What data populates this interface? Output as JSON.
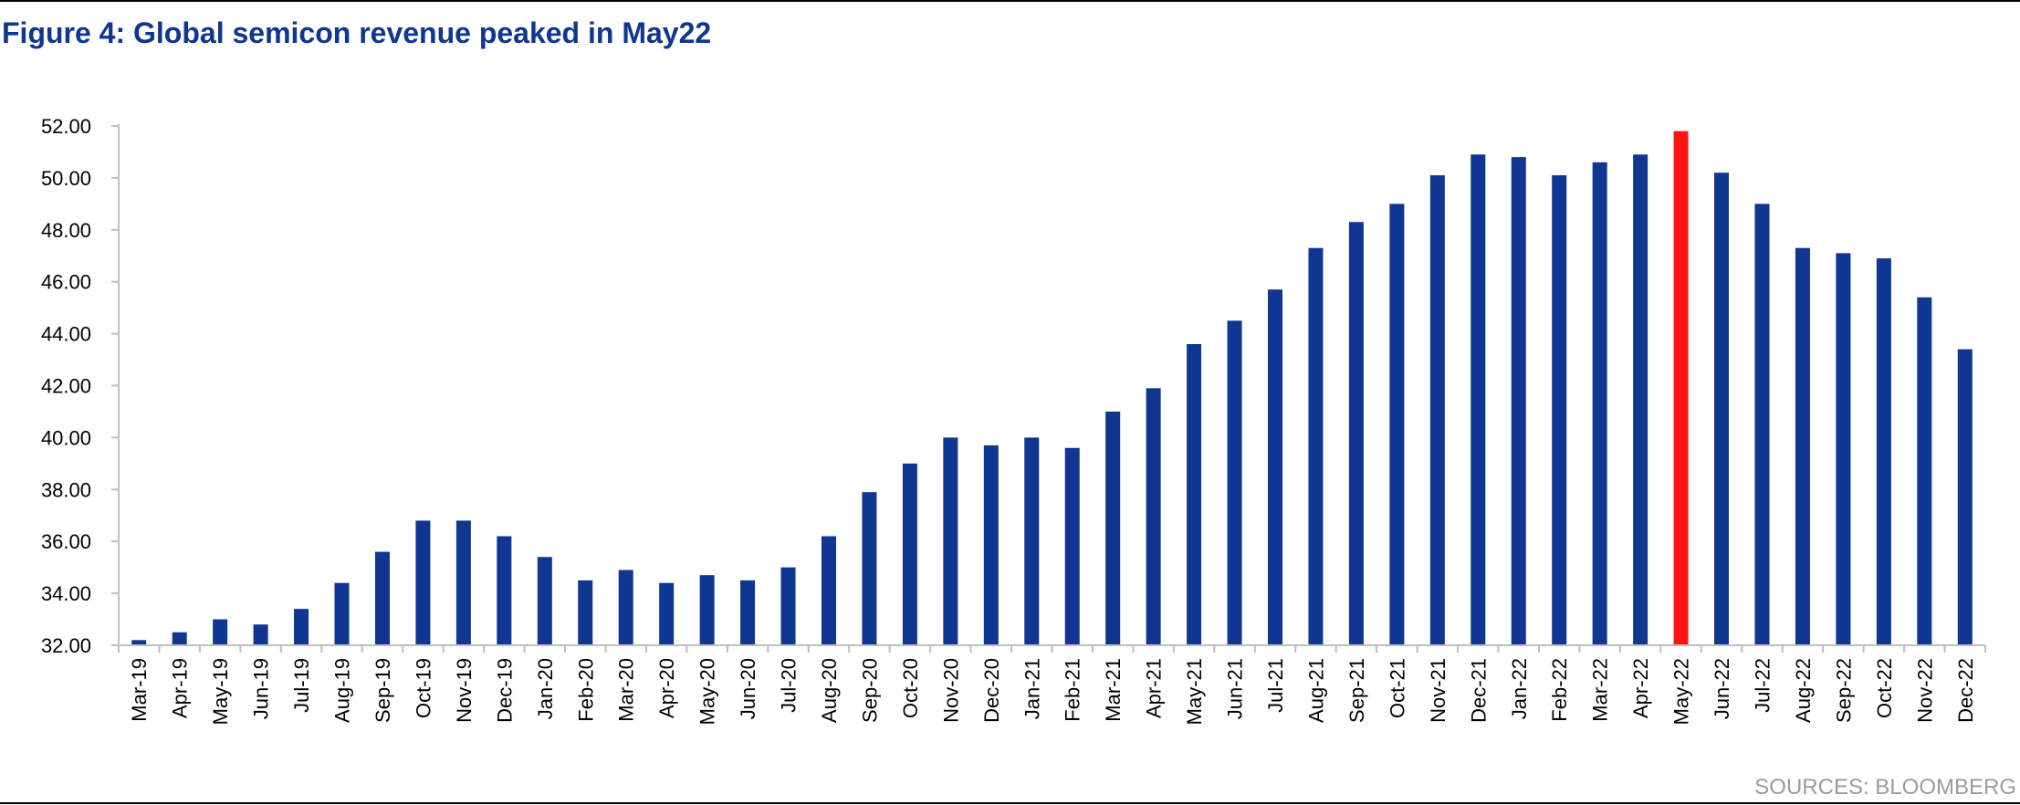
{
  "title": "Figure 4: Global semicon revenue peaked in May22",
  "source": "SOURCES: BLOOMBERG",
  "colors": {
    "bar": "#0f3690",
    "highlight": "#ff1414",
    "title": "#0f3690",
    "axis": "#bfbfbf"
  },
  "chart_data": {
    "type": "bar",
    "title": "Figure 4: Global semicon revenue peaked in May22",
    "xlabel": "",
    "ylabel": "",
    "ylim": [
      32,
      52
    ],
    "yticks": [
      "32.00",
      "34.00",
      "36.00",
      "38.00",
      "40.00",
      "42.00",
      "44.00",
      "46.00",
      "48.00",
      "50.00",
      "52.00"
    ],
    "grid": false,
    "highlight_category": "May-22",
    "categories": [
      "Mar-19",
      "Apr-19",
      "May-19",
      "Jun-19",
      "Jul-19",
      "Aug-19",
      "Sep-19",
      "Oct-19",
      "Nov-19",
      "Dec-19",
      "Jan-20",
      "Feb-20",
      "Mar-20",
      "Apr-20",
      "May-20",
      "Jun-20",
      "Jul-20",
      "Aug-20",
      "Sep-20",
      "Oct-20",
      "Nov-20",
      "Dec-20",
      "Jan-21",
      "Feb-21",
      "Mar-21",
      "Apr-21",
      "May-21",
      "Jun-21",
      "Jul-21",
      "Aug-21",
      "Sep-21",
      "Oct-21",
      "Nov-21",
      "Dec-21",
      "Jan-22",
      "Feb-22",
      "Mar-22",
      "Apr-22",
      "May-22",
      "Jun-22",
      "Jul-22",
      "Aug-22",
      "Sep-22",
      "Oct-22",
      "Nov-22",
      "Dec-22"
    ],
    "values": [
      32.2,
      32.5,
      33.0,
      32.8,
      33.4,
      34.4,
      35.6,
      36.8,
      36.8,
      36.2,
      35.4,
      34.5,
      34.9,
      34.4,
      34.7,
      34.5,
      35.0,
      36.2,
      37.9,
      39.0,
      40.0,
      39.7,
      40.0,
      39.6,
      41.0,
      41.9,
      43.6,
      44.5,
      45.7,
      47.3,
      48.3,
      49.0,
      50.1,
      50.9,
      50.8,
      50.1,
      50.6,
      50.9,
      51.8,
      50.2,
      49.0,
      47.3,
      47.1,
      46.9,
      45.4,
      43.4
    ]
  }
}
